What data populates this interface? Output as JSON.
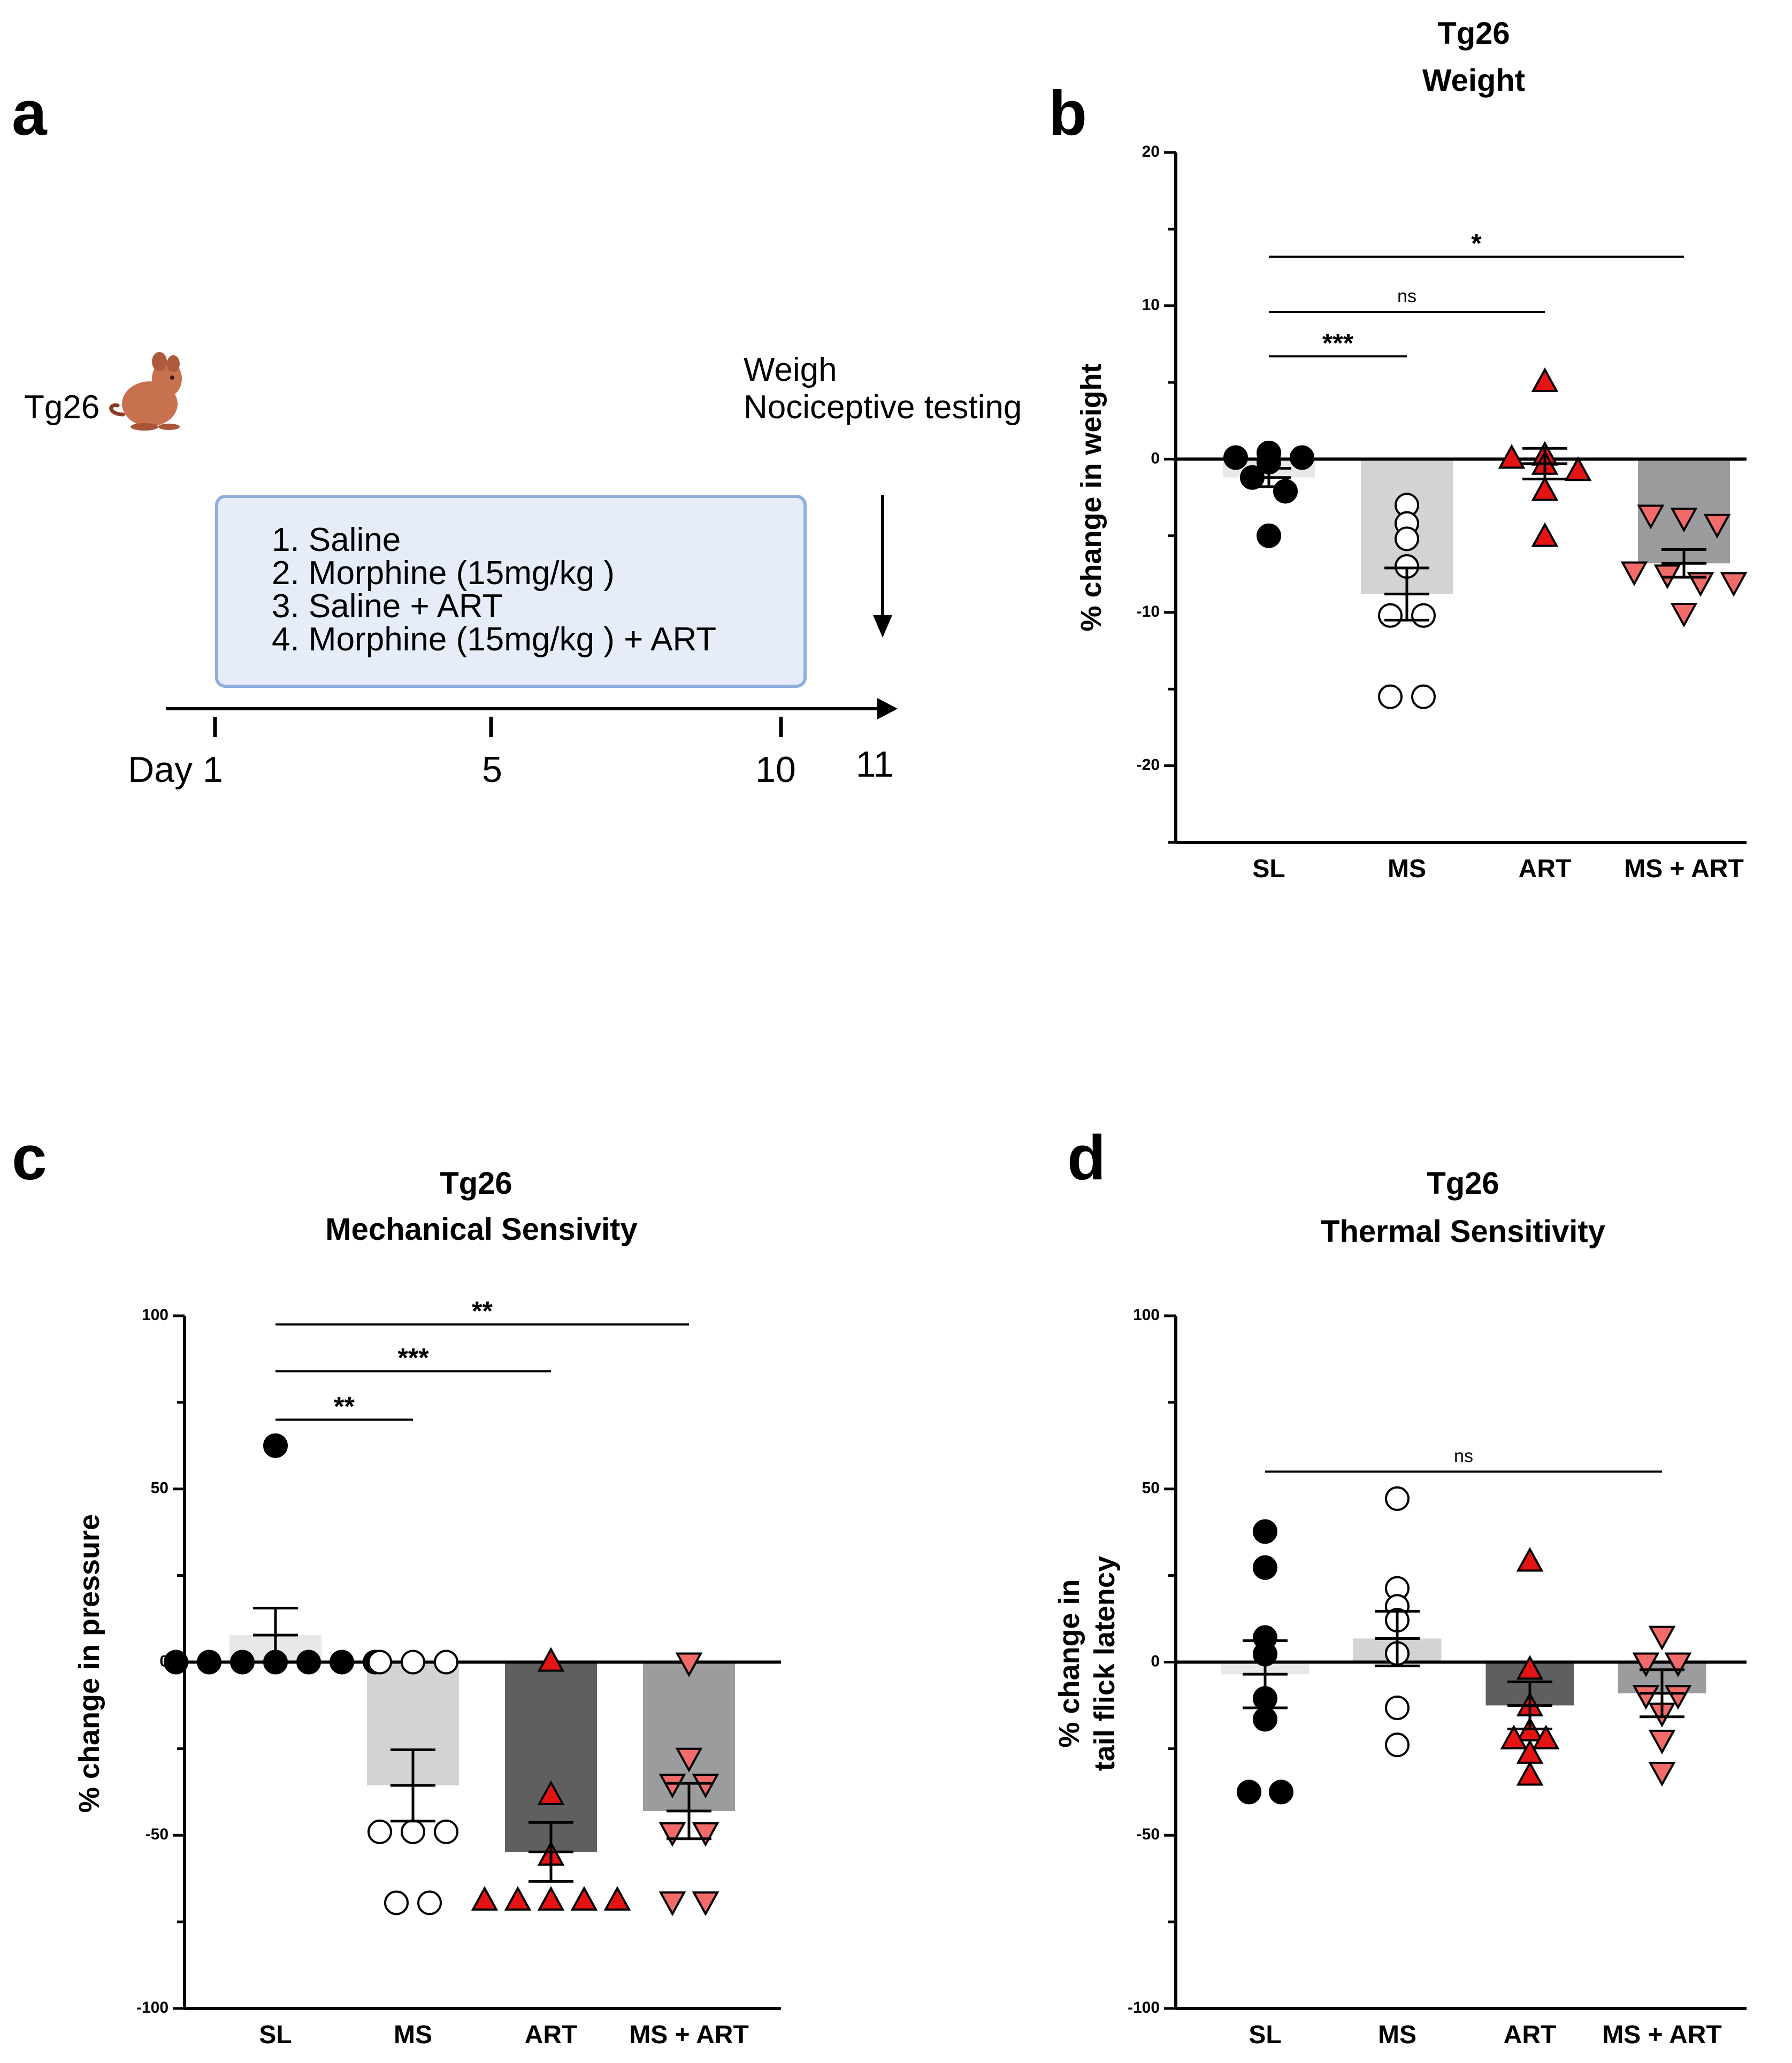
{
  "panel_a": {
    "letter": "a",
    "strain_label": "Tg26",
    "mouse_icon": "mouse-icon",
    "endpoint_lines": [
      "Weigh",
      "Nociceptive testing"
    ],
    "treatments": [
      "1.  Saline",
      "2.  Morphine (15mg/kg )",
      "3.  Saline + ART",
      "4.  Morphine (15mg/kg ) + ART"
    ],
    "day_labels": [
      "Day 1",
      "5",
      "10",
      "11"
    ],
    "box_color": "#e6edf8",
    "box_border": "#8faedb"
  },
  "colors": {
    "black": "#000000",
    "red": "#e41414",
    "pink": "#f26b6b",
    "bar_sl": "#e8e8e8",
    "bar_ms": "#d3d3d3",
    "bar_art_c": "#5f5f5f",
    "bar_art_d": "#5f5f5f",
    "bar_msart": "#9c9c9f"
  },
  "chart_data": [
    {
      "panel": "b",
      "type": "bar",
      "title_lines": [
        "Tg26",
        "Weight"
      ],
      "ylabel_lines": [
        "% change in weight"
      ],
      "categories": [
        "SL",
        "MS",
        "ART",
        "MS + ART"
      ],
      "ylim": [
        -25,
        20
      ],
      "yticks": [
        20,
        10,
        0,
        -10,
        -20
      ],
      "means": [
        -1.2,
        -8.8,
        -0.3,
        -6.8
      ],
      "sem": [
        0.6,
        1.7,
        1.0,
        0.9
      ],
      "points": [
        [
          0.1,
          0.4,
          0.1,
          -0.2,
          -1.2,
          -2.1,
          -5
        ],
        [
          -3,
          -4.2,
          -5.2,
          -7,
          -10.2,
          -10.2,
          -15.5,
          -15.5
        ],
        [
          5,
          0.2,
          0,
          -0.4,
          -0.8,
          -2.1,
          -5.1
        ],
        [
          -3.6,
          -3.8,
          -4.2,
          -7.3,
          -7.5,
          -8,
          -8,
          -10
        ]
      ],
      "significance": [
        {
          "from": 0,
          "to": 1,
          "label": "***",
          "y": 6.7
        },
        {
          "from": 0,
          "to": 2,
          "label": "ns",
          "y": 9.6
        },
        {
          "from": 0,
          "to": 3,
          "label": "*",
          "y": 13.2
        }
      ]
    },
    {
      "panel": "c",
      "type": "bar",
      "title_lines": [
        "Tg26",
        "Mechanical Sensivity"
      ],
      "ylabel_lines": [
        "% change in pressure"
      ],
      "categories": [
        "SL",
        "MS",
        "ART",
        "MS + ART"
      ],
      "ylim": [
        -100,
        100
      ],
      "yticks": [
        100,
        50,
        0,
        -50,
        -100
      ],
      "means": [
        7.8,
        -35.6,
        -54.8,
        -43
      ],
      "sem": [
        7.8,
        10.3,
        8.5,
        8
      ],
      "points": [
        [
          62.5,
          0,
          0,
          0,
          0,
          0,
          0,
          0
        ],
        [
          0,
          0,
          0,
          -49,
          -49,
          -49,
          -69.5,
          -69.5
        ],
        [
          0,
          -38.5,
          -56,
          -69,
          -69,
          -69,
          -69,
          -69
        ],
        [
          0,
          -27.5,
          -35,
          -35,
          -49,
          -49,
          -69,
          -69
        ]
      ],
      "significance": [
        {
          "from": 0,
          "to": 1,
          "label": "**",
          "y": 70
        },
        {
          "from": 0,
          "to": 2,
          "label": "***",
          "y": 84
        },
        {
          "from": 0,
          "to": 3,
          "label": "**",
          "y": 97.5
        }
      ]
    },
    {
      "panel": "d",
      "type": "bar",
      "title_lines": [
        "Tg26",
        "Thermal Sensitivity"
      ],
      "ylabel_lines": [
        "% change in",
        "tail flick latency"
      ],
      "categories": [
        "SL",
        "MS",
        "ART",
        "MS + ART"
      ],
      "ylim": [
        -100,
        100
      ],
      "yticks": [
        100,
        50,
        0,
        -50,
        -100
      ],
      "means": [
        -3.5,
        6.8,
        -12.5,
        -9
      ],
      "sem": [
        9.7,
        7.9,
        6.8,
        6.8
      ],
      "points": [
        [
          37.7,
          27.3,
          2.3,
          7.1,
          -10.5,
          -16.5,
          -37.5,
          -37.5
        ],
        [
          47.2,
          21.3,
          16.1,
          12.1,
          2.5,
          -13.2,
          -23.9
        ],
        [
          28.9,
          -2.3,
          -12.9,
          -20.1,
          -22.4,
          -22.4,
          -26.6,
          -32.9
        ],
        [
          7.7,
          0,
          0,
          -9.4,
          -9.4,
          -14.5,
          -22.3,
          -31.6
        ]
      ],
      "significance": [
        {
          "from": 0,
          "to": 3,
          "label": "ns",
          "y": 55
        }
      ]
    }
  ]
}
